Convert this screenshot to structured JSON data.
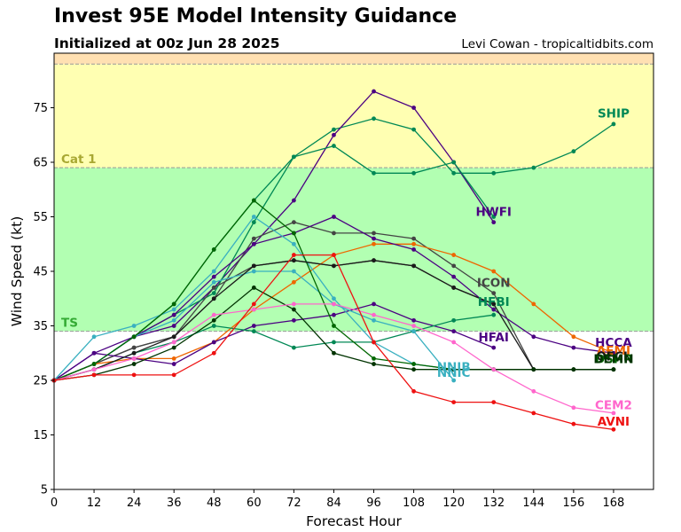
{
  "header": {
    "title": "Invest 95E Model Intensity Guidance",
    "subtitle": "Initialized at 00z Jun 28 2025",
    "credit": "Levi Cowan - tropicaltidbits.com"
  },
  "chart_data": {
    "type": "line",
    "title": "Invest 95E Model Intensity Guidance",
    "subtitle": "Initialized at 00z Jun 28 2025",
    "xlabel": "Forecast Hour",
    "ylabel": "Wind Speed (kt)",
    "xlim": [
      0,
      180
    ],
    "ylim": [
      5,
      85
    ],
    "xticks": [
      0,
      12,
      24,
      36,
      48,
      60,
      72,
      84,
      96,
      108,
      120,
      132,
      144,
      156,
      168
    ],
    "yticks": [
      5,
      15,
      25,
      35,
      45,
      55,
      65,
      75
    ],
    "bands": [
      {
        "name": "TS",
        "from": 34,
        "to": 64,
        "color": "#b2ffb2",
        "label_color": "#33aa33"
      },
      {
        "name": "Cat 1",
        "from": 64,
        "to": 83,
        "color": "#ffffb2",
        "label_color": "#a8a832"
      },
      {
        "name": "",
        "from": 83,
        "to": 85,
        "color": "#ffe0b2",
        "label_color": ""
      }
    ],
    "series": [
      {
        "name": "SHIP",
        "color": "#008855",
        "x": [
          0,
          12,
          24,
          36,
          48,
          60,
          72,
          84,
          96,
          108,
          120,
          132,
          144,
          156,
          168
        ],
        "y": [
          25,
          28,
          33,
          39,
          49,
          58,
          66,
          71,
          73,
          71,
          63,
          63,
          64,
          67,
          72
        ]
      },
      {
        "name": "HWFI",
        "color": "#4b0082",
        "x": [
          0,
          12,
          24,
          36,
          48,
          60,
          72,
          84,
          96,
          108,
          120,
          132
        ],
        "y": [
          25,
          28,
          33,
          35,
          42,
          50,
          58,
          70,
          78,
          75,
          65,
          54
        ]
      },
      {
        "name": "",
        "color": "#008855",
        "x": [
          0,
          12,
          24,
          36,
          48,
          60,
          72,
          84,
          96,
          108,
          120,
          132
        ],
        "y": [
          25,
          28,
          33,
          37,
          41,
          54,
          66,
          68,
          63,
          63,
          65,
          55
        ]
      },
      {
        "name": "ICON",
        "color": "#444444",
        "x": [
          0,
          12,
          24,
          36,
          48,
          60,
          72,
          84,
          96,
          108,
          120,
          132,
          144
        ],
        "y": [
          25,
          28,
          31,
          33,
          40,
          51,
          54,
          52,
          52,
          51,
          46,
          41,
          27
        ]
      },
      {
        "name": "",
        "color": "#444444",
        "x": [
          0,
          12,
          24,
          36,
          48,
          60,
          72,
          84,
          96,
          108,
          120,
          132
        ],
        "y": [
          25,
          28,
          31,
          33,
          42,
          46,
          47,
          46,
          47,
          46,
          42,
          39
        ]
      },
      {
        "name": "AEMI",
        "color": "#ee6600",
        "x": [
          0,
          12,
          24,
          36,
          48,
          60,
          72,
          84,
          96,
          108,
          120,
          132,
          144,
          156,
          168
        ],
        "y": [
          25,
          28,
          29,
          29,
          32,
          38,
          43,
          48,
          50,
          50,
          48,
          45,
          39,
          33,
          30
        ]
      },
      {
        "name": "HCCA",
        "color": "#4b0082",
        "x": [
          0,
          12,
          24,
          36,
          48,
          60,
          72,
          84,
          96,
          108,
          120,
          132,
          144,
          156,
          168
        ],
        "y": [
          25,
          30,
          33,
          37,
          44,
          50,
          52,
          55,
          51,
          49,
          44,
          38,
          33,
          31,
          30
        ]
      },
      {
        "name": "HFAI",
        "color": "#4b0082",
        "x": [
          0,
          12,
          24,
          36,
          48,
          60,
          72,
          84,
          96,
          108,
          120,
          132
        ],
        "y": [
          25,
          30,
          29,
          28,
          32,
          35,
          36,
          37,
          39,
          36,
          34,
          31
        ]
      },
      {
        "name": "HFBI",
        "color": "#008855",
        "x": [
          0,
          12,
          24,
          36,
          48,
          60,
          72,
          84,
          96,
          108,
          120,
          132
        ],
        "y": [
          25,
          27,
          30,
          32,
          35,
          34,
          31,
          32,
          32,
          34,
          36,
          37
        ]
      },
      {
        "name": "NNIB",
        "color": "#3ab0c0",
        "x": [
          0,
          12,
          24,
          36,
          48,
          60,
          72,
          84,
          96,
          108,
          120
        ],
        "y": [
          25,
          33,
          35,
          38,
          45,
          55,
          50,
          40,
          32,
          28,
          27
        ]
      },
      {
        "name": "NNIC",
        "color": "#3ab0c0",
        "x": [
          0,
          12,
          24,
          36,
          48,
          60,
          72,
          84,
          96,
          108,
          120
        ],
        "y": [
          25,
          28,
          33,
          36,
          43,
          45,
          45,
          39,
          36,
          34,
          25
        ]
      },
      {
        "name": "DSHP",
        "color": "#006600",
        "x": [
          0,
          12,
          24,
          36,
          48,
          60,
          72,
          84,
          96,
          108,
          120,
          132,
          144,
          156,
          168
        ],
        "y": [
          25,
          28,
          33,
          39,
          49,
          58,
          52,
          35,
          29,
          28,
          27,
          27,
          27,
          27,
          27
        ]
      },
      {
        "name": "OFCL",
        "color": "#1a1a1a",
        "x": [
          0,
          12,
          24,
          36,
          48,
          60,
          72,
          84,
          96,
          108,
          120,
          132,
          144,
          156,
          168
        ],
        "y": [
          25,
          27,
          30,
          33,
          40,
          46,
          47,
          46,
          47,
          46,
          42,
          39,
          27,
          27,
          27
        ]
      },
      {
        "name": "DEMN",
        "color": "#003300",
        "x": [
          0,
          12,
          24,
          36,
          48,
          60,
          72,
          84,
          96,
          108,
          120,
          132,
          144,
          156,
          168
        ],
        "y": [
          25,
          26,
          28,
          31,
          36,
          42,
          38,
          30,
          28,
          27,
          27,
          27,
          27,
          27,
          27
        ]
      },
      {
        "name": "CEM2",
        "color": "#ff66cc",
        "x": [
          0,
          12,
          24,
          36,
          48,
          60,
          72,
          84,
          96,
          108,
          120,
          132,
          144,
          156,
          168
        ],
        "y": [
          25,
          27,
          29,
          32,
          37,
          38,
          39,
          39,
          37,
          35,
          32,
          27,
          23,
          20,
          19
        ]
      },
      {
        "name": "AVNI",
        "color": "#ee1111",
        "x": [
          0,
          12,
          24,
          36,
          48,
          60,
          72,
          84,
          96,
          108,
          120,
          132,
          144,
          156,
          168
        ],
        "y": [
          25,
          26,
          26,
          26,
          30,
          39,
          48,
          48,
          32,
          23,
          21,
          21,
          19,
          17,
          16
        ]
      }
    ],
    "labels": [
      {
        "text": "SHIP",
        "x": 168,
        "y": 74,
        "color": "#008855"
      },
      {
        "text": "HWFI",
        "x": 132,
        "y": 56,
        "color": "#4b0082"
      },
      {
        "text": "ICON",
        "x": 132,
        "y": 43,
        "color": "#444444"
      },
      {
        "text": "HFBI",
        "x": 132,
        "y": 39.5,
        "color": "#008855"
      },
      {
        "text": "HFAI",
        "x": 132,
        "y": 33,
        "color": "#4b0082"
      },
      {
        "text": "HCCA",
        "x": 168,
        "y": 32,
        "color": "#4b0082"
      },
      {
        "text": "AEMI",
        "x": 168,
        "y": 30.5,
        "color": "#ee6600"
      },
      {
        "text": "OFCL",
        "x": 168,
        "y": 29.5,
        "color": "#1a1a1a"
      },
      {
        "text": "DSHP",
        "x": 168,
        "y": 29,
        "color": "#006600"
      },
      {
        "text": "DEMN",
        "x": 168,
        "y": 29,
        "color": "#003300"
      },
      {
        "text": "NNIB",
        "x": 120,
        "y": 27.5,
        "color": "#3ab0c0"
      },
      {
        "text": "NNIC",
        "x": 120,
        "y": 26.5,
        "color": "#3ab0c0"
      },
      {
        "text": "CEM2",
        "x": 168,
        "y": 20.5,
        "color": "#ff66cc"
      },
      {
        "text": "AVNI",
        "x": 168,
        "y": 17.5,
        "color": "#ee1111"
      }
    ]
  }
}
